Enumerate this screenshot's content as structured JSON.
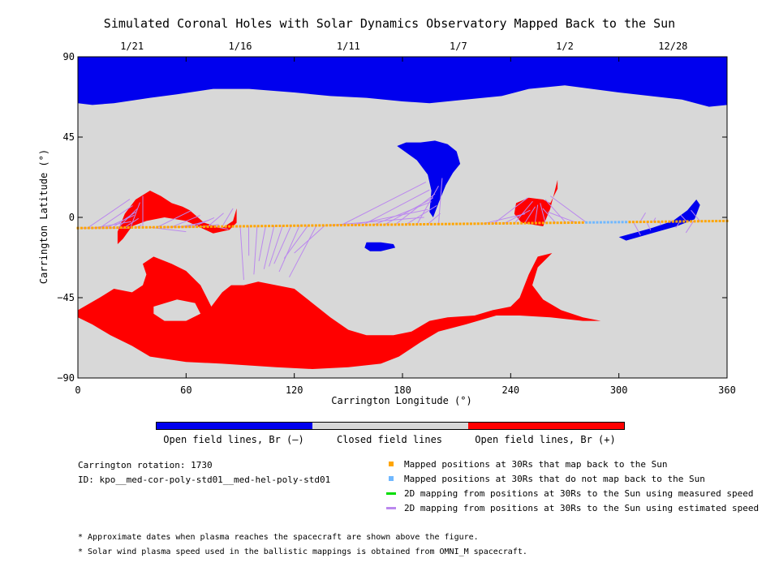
{
  "title": "Simulated Coronal Holes with Solar Dynamics Observatory Mapped Back to the Sun",
  "colors": {
    "open_negative": "#0000ee",
    "closed": "#d8d8d8",
    "open_positive": "#ff0000",
    "mapped_back": "#ffa500",
    "not_mapped_back": "#70b8ff",
    "measured_speed": "#00dd00",
    "estimated_speed": "#bb88ee"
  },
  "chart_data": {
    "type": "map",
    "xlabel": "Carrington Longitude (°)",
    "ylabel": "Carrington Latitude (°)",
    "xlim": [
      0,
      360
    ],
    "ylim": [
      -90,
      90
    ],
    "x_ticks": [
      0,
      60,
      120,
      180,
      240,
      300,
      360
    ],
    "y_ticks": [
      90,
      45,
      0,
      -45,
      -90
    ],
    "y_tick_labels": [
      "90",
      "45",
      "0",
      "−45",
      "−90"
    ],
    "top_dates": [
      {
        "label": "1/21",
        "lon": 30
      },
      {
        "label": "1/16",
        "lon": 90
      },
      {
        "label": "1/11",
        "lon": 150
      },
      {
        "label": "1/7",
        "lon": 211
      },
      {
        "label": "1/2",
        "lon": 270
      },
      {
        "label": "12/28",
        "lon": 330
      }
    ],
    "coronal_holes": [
      {
        "polarity": "negative",
        "points": [
          [
            0,
            90
          ],
          [
            360,
            90
          ],
          [
            360,
            63
          ],
          [
            350,
            62
          ],
          [
            335,
            66
          ],
          [
            300,
            70
          ],
          [
            270,
            74
          ],
          [
            250,
            72
          ],
          [
            235,
            68
          ],
          [
            215,
            66
          ],
          [
            195,
            64
          ],
          [
            180,
            65
          ],
          [
            160,
            67
          ],
          [
            140,
            68
          ],
          [
            120,
            70
          ],
          [
            95,
            72
          ],
          [
            75,
            72
          ],
          [
            55,
            69
          ],
          [
            40,
            67
          ],
          [
            20,
            64
          ],
          [
            8,
            63
          ],
          [
            0,
            64
          ]
        ]
      },
      {
        "polarity": "negative",
        "points": [
          [
            190,
            42
          ],
          [
            198,
            43
          ],
          [
            205,
            41
          ],
          [
            210,
            37
          ],
          [
            212,
            30
          ],
          [
            208,
            25
          ],
          [
            204,
            18
          ],
          [
            200,
            8
          ],
          [
            197,
            0
          ],
          [
            195,
            3
          ],
          [
            196,
            15
          ],
          [
            194,
            24
          ],
          [
            188,
            32
          ],
          [
            177,
            40
          ],
          [
            182,
            42
          ]
        ]
      },
      {
        "polarity": "negative",
        "points": [
          [
            160,
            -14
          ],
          [
            168,
            -14
          ],
          [
            175,
            -15
          ],
          [
            176,
            -17
          ],
          [
            168,
            -19
          ],
          [
            162,
            -19
          ],
          [
            159,
            -17
          ]
        ]
      },
      {
        "polarity": "negative",
        "points": [
          [
            300,
            -11
          ],
          [
            318,
            -6
          ],
          [
            330,
            -2
          ],
          [
            338,
            4
          ],
          [
            343,
            10
          ],
          [
            345,
            7
          ],
          [
            342,
            -1
          ],
          [
            332,
            -5
          ],
          [
            318,
            -9
          ],
          [
            304,
            -13
          ]
        ]
      },
      {
        "polarity": "positive",
        "points": [
          [
            22,
            -8
          ],
          [
            26,
            2
          ],
          [
            32,
            10
          ],
          [
            40,
            15
          ],
          [
            46,
            12
          ],
          [
            52,
            8
          ],
          [
            58,
            6
          ],
          [
            62,
            4
          ],
          [
            70,
            -3
          ],
          [
            80,
            -6
          ],
          [
            86,
            -2
          ],
          [
            88,
            5
          ],
          [
            88,
            -3
          ],
          [
            84,
            -7
          ],
          [
            75,
            -9
          ],
          [
            60,
            -2
          ],
          [
            48,
            0
          ],
          [
            38,
            -2
          ],
          [
            30,
            -5
          ],
          [
            25,
            -12
          ],
          [
            22,
            -15
          ]
        ]
      },
      {
        "polarity": "positive",
        "points": [
          [
            243,
            8
          ],
          [
            250,
            11
          ],
          [
            258,
            10
          ],
          [
            262,
            8
          ],
          [
            266,
            16
          ],
          [
            266,
            21
          ],
          [
            262,
            5
          ],
          [
            258,
            -5
          ],
          [
            246,
            -3
          ],
          [
            242,
            2
          ]
        ]
      },
      {
        "polarity": "positive",
        "points": [
          [
            0,
            -52
          ],
          [
            12,
            -45
          ],
          [
            20,
            -40
          ],
          [
            30,
            -42
          ],
          [
            36,
            -38
          ],
          [
            38,
            -32
          ],
          [
            36,
            -26
          ],
          [
            42,
            -22
          ],
          [
            52,
            -26
          ],
          [
            60,
            -30
          ],
          [
            68,
            -38
          ],
          [
            74,
            -50
          ],
          [
            80,
            -42
          ],
          [
            85,
            -38
          ],
          [
            92,
            -38
          ],
          [
            100,
            -36
          ],
          [
            110,
            -38
          ],
          [
            120,
            -40
          ],
          [
            130,
            -48
          ],
          [
            140,
            -56
          ],
          [
            150,
            -63
          ],
          [
            160,
            -66
          ],
          [
            175,
            -66
          ],
          [
            185,
            -64
          ],
          [
            195,
            -58
          ],
          [
            205,
            -56
          ],
          [
            220,
            -55
          ],
          [
            230,
            -52
          ],
          [
            240,
            -50
          ],
          [
            245,
            -45
          ],
          [
            250,
            -32
          ],
          [
            255,
            -22
          ],
          [
            263,
            -20
          ],
          [
            255,
            -28
          ],
          [
            252,
            -38
          ],
          [
            258,
            -46
          ],
          [
            268,
            -52
          ],
          [
            280,
            -56
          ],
          [
            290,
            -58
          ],
          [
            280,
            -58
          ],
          [
            262,
            -56
          ],
          [
            245,
            -55
          ],
          [
            232,
            -55
          ],
          [
            215,
            -60
          ],
          [
            200,
            -64
          ],
          [
            190,
            -70
          ],
          [
            178,
            -78
          ],
          [
            168,
            -82
          ],
          [
            150,
            -84
          ],
          [
            130,
            -85
          ],
          [
            110,
            -84
          ],
          [
            80,
            -82
          ],
          [
            60,
            -81
          ],
          [
            40,
            -78
          ],
          [
            30,
            -72
          ],
          [
            18,
            -66
          ],
          [
            8,
            -60
          ],
          [
            0,
            -56
          ]
        ]
      }
    ],
    "holes_in_regions": [
      {
        "points": [
          [
            42,
            -50
          ],
          [
            55,
            -46
          ],
          [
            65,
            -48
          ],
          [
            68,
            -54
          ],
          [
            60,
            -58
          ],
          [
            48,
            -58
          ],
          [
            42,
            -54
          ]
        ]
      }
    ],
    "spacecraft_track": {
      "lon_start": 0,
      "lat_start": -6,
      "lon_end": 360,
      "lat_end": -2,
      "not_mapped_from": 282,
      "not_mapped_to": 305
    },
    "mapping_lines": [
      {
        "from_lon": [
          2,
          36
        ],
        "to_lon": [
          28,
          36
        ],
        "to_lat": [
          -6,
          12
        ]
      },
      {
        "from_lon": [
          40,
          80
        ],
        "to_lon": [
          60,
          86
        ],
        "to_lat": [
          -8,
          5
        ]
      },
      {
        "from_lon": [
          90,
          137
        ],
        "to_lon": [
          92,
          120
        ],
        "to_lat": [
          -35,
          -20
        ]
      },
      {
        "from_lon": [
          140,
          200
        ],
        "to_lon": [
          192,
          202
        ],
        "to_lat": [
          0,
          22
        ]
      },
      {
        "from_lon": [
          225,
          282
        ],
        "to_lon": [
          248,
          262
        ],
        "to_lat": [
          2,
          12
        ]
      },
      {
        "from_lon": [
          308,
          345
        ],
        "to_lon": [
          312,
          340
        ],
        "to_lat": [
          -10,
          4
        ]
      }
    ]
  },
  "colorbar_labels": [
    "Open field lines, Br (–)",
    "Closed field lines",
    "Open field lines, Br (+)"
  ],
  "info": {
    "rotation": "Carrington rotation: 1730",
    "id": "ID: kpo__med-cor-poly-std01__med-hel-poly-std01"
  },
  "legend": {
    "mapped": "Mapped positions at 30Rs that map back to the Sun",
    "not_mapped": "Mapped positions at 30Rs that do not map back to the Sun",
    "measured": "2D mapping from positions at 30Rs to the Sun using measured speed",
    "estimated": "2D mapping from positions at 30Rs to the Sun using estimated speed"
  },
  "notes": [
    "* Approximate dates when plasma reaches the spacecraft are shown above the figure.",
    "* Solar wind plasma speed used in the ballistic mappings is obtained from OMNI_M spacecraft."
  ]
}
